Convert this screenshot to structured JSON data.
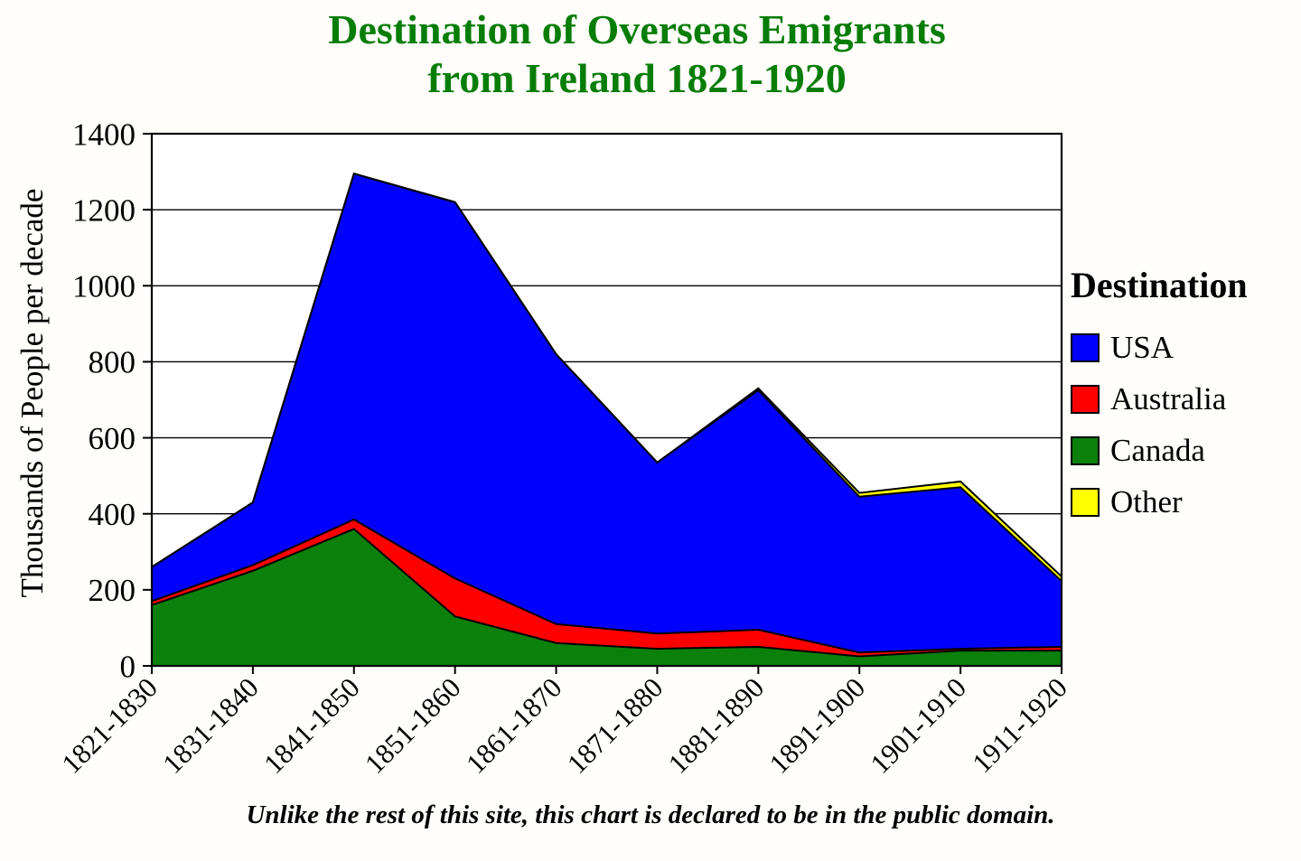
{
  "title": {
    "line1": "Destination of Overseas Emigrants",
    "line2": "from Ireland 1821-1920",
    "color": "#067d06"
  },
  "y_axis": {
    "label": "Thousands of People per decade",
    "min": 0,
    "max": 1400,
    "step": 200
  },
  "legend": {
    "title": "Destination"
  },
  "footer": "Unlike the rest of this site, this chart is declared to be in the public domain.",
  "colors": {
    "usa": "#0000ff",
    "australia": "#ff0000",
    "canada": "#0b800b",
    "other": "#ffff00",
    "axis": "#000000",
    "title_green": "#067d06"
  },
  "chart_data": {
    "type": "area",
    "stacked": true,
    "title": "Destination of Overseas Emigrants from Ireland 1821-1920",
    "xlabel": "",
    "ylabel": "Thousands of People per decade",
    "ylim": [
      0,
      1400
    ],
    "grid": true,
    "legend_position": "right",
    "categories": [
      "1821-1830",
      "1831-1840",
      "1841-1850",
      "1851-1860",
      "1861-1870",
      "1871-1880",
      "1881-1890",
      "1891-1900",
      "1901-1910",
      "1911-1920"
    ],
    "series": [
      {
        "name": "USA",
        "color": "#0000ff",
        "values": [
          90,
          165,
          910,
          990,
          710,
          450,
          630,
          410,
          425,
          173
        ]
      },
      {
        "name": "Australia",
        "color": "#ff0000",
        "values": [
          10,
          15,
          25,
          100,
          50,
          40,
          45,
          10,
          5,
          10
        ]
      },
      {
        "name": "Canada",
        "color": "#0b800b",
        "values": [
          160,
          250,
          360,
          130,
          60,
          45,
          50,
          25,
          40,
          40
        ]
      },
      {
        "name": "Other",
        "color": "#ffff00",
        "values": [
          0,
          0,
          0,
          0,
          0,
          0,
          5,
          10,
          15,
          12
        ]
      }
    ],
    "stack_order": [
      "Canada",
      "Australia",
      "USA",
      "Other"
    ],
    "totals_per_decade": [
      260,
      430,
      1295,
      1220,
      820,
      535,
      730,
      455,
      485,
      235
    ]
  }
}
